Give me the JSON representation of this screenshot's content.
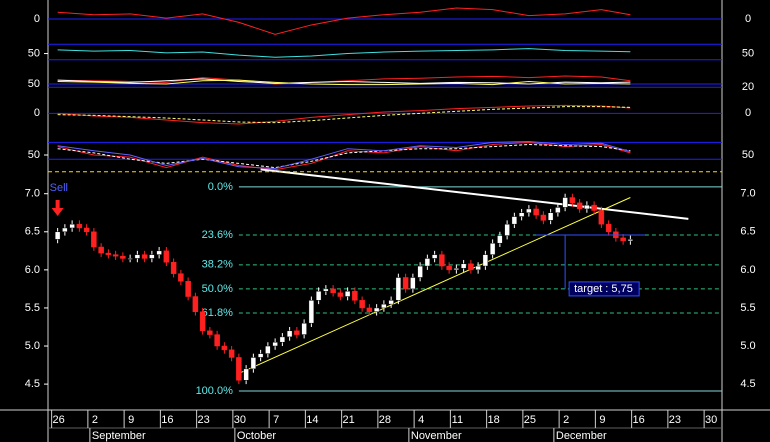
{
  "chart_data": [
    {
      "type": "candlestick",
      "categories": [
        "26",
        null,
        null,
        null,
        null,
        "2",
        null,
        null,
        null,
        null,
        "9",
        null,
        null,
        null,
        null,
        "16",
        null,
        null,
        null,
        null,
        "23",
        null,
        null,
        null,
        null,
        "30",
        null,
        null,
        null,
        null,
        "7",
        null,
        null,
        null,
        null,
        "14",
        null,
        null,
        null,
        null,
        "21",
        null,
        null,
        null,
        null,
        "28",
        null,
        null,
        null,
        null,
        "4",
        null,
        null,
        null,
        null,
        "11",
        null,
        null,
        null,
        null,
        "18",
        null,
        null,
        null,
        null,
        "25",
        null,
        null,
        null,
        null,
        "2",
        null,
        null,
        null,
        null,
        "9",
        null,
        null,
        null,
        null,
        "16",
        null,
        null,
        null,
        null,
        "23",
        null,
        null,
        null,
        null,
        "30"
      ],
      "x_groups": [
        {
          "label": "September",
          "from": 5
        },
        {
          "label": "October",
          "from": 25
        },
        {
          "label": "November",
          "from": 49
        },
        {
          "label": "December",
          "from": 69
        }
      ],
      "open": [
        6.4,
        6.5,
        6.55,
        6.6,
        6.55,
        6.5,
        6.3,
        6.22,
        6.2,
        6.18,
        6.15,
        6.15,
        6.2,
        6.15,
        6.2,
        6.25,
        6.1,
        5.95,
        5.85,
        5.65,
        5.45,
        5.2,
        5.15,
        5.0,
        4.95,
        4.85,
        4.55,
        4.7,
        4.85,
        4.9,
        5.0,
        5.05,
        5.12,
        5.2,
        5.15,
        5.3,
        5.6,
        5.72,
        5.75,
        5.7,
        5.65,
        5.72,
        5.6,
        5.5,
        5.45,
        5.5,
        5.55,
        5.6,
        5.9,
        5.75,
        5.9,
        6.05,
        6.15,
        6.2,
        6.05,
        6.0,
        6.02,
        6.08,
        6.0,
        6.05,
        6.2,
        6.35,
        6.45,
        6.6,
        6.7,
        6.75,
        6.8,
        6.72,
        6.65,
        6.75,
        6.82,
        6.95,
        6.88,
        6.8,
        6.85,
        6.78,
        6.6,
        6.5,
        6.42,
        6.38,
        null,
        null,
        null,
        null,
        null,
        null,
        null,
        null,
        null,
        null,
        null
      ],
      "high": [
        6.55,
        6.6,
        6.65,
        6.65,
        6.6,
        6.55,
        6.35,
        6.27,
        6.25,
        6.23,
        6.2,
        6.25,
        6.25,
        6.25,
        6.3,
        6.3,
        6.15,
        6.0,
        5.9,
        5.7,
        5.5,
        5.25,
        5.2,
        5.05,
        5.0,
        4.9,
        4.75,
        4.9,
        4.95,
        5.05,
        5.1,
        5.17,
        5.25,
        5.25,
        5.35,
        5.65,
        5.77,
        5.8,
        5.8,
        5.75,
        5.77,
        5.77,
        5.65,
        5.55,
        5.55,
        5.6,
        5.65,
        5.95,
        5.95,
        5.95,
        6.1,
        6.2,
        6.25,
        6.25,
        6.1,
        6.07,
        6.13,
        6.13,
        6.1,
        6.25,
        6.4,
        6.5,
        6.65,
        6.75,
        6.8,
        6.85,
        6.85,
        6.77,
        6.8,
        6.87,
        7.0,
        7.0,
        6.93,
        6.9,
        6.9,
        6.83,
        6.65,
        6.55,
        6.47,
        6.45,
        null,
        null,
        null,
        null,
        null,
        null,
        null,
        null,
        null,
        null,
        null
      ],
      "low": [
        6.35,
        6.45,
        6.5,
        6.5,
        6.45,
        6.25,
        6.17,
        6.15,
        6.13,
        6.1,
        6.1,
        6.1,
        6.1,
        6.1,
        6.15,
        6.05,
        5.9,
        5.8,
        5.6,
        5.4,
        5.15,
        5.1,
        4.95,
        4.9,
        4.8,
        4.5,
        4.5,
        4.65,
        4.8,
        4.85,
        4.95,
        5.0,
        5.07,
        5.1,
        5.1,
        5.25,
        5.55,
        5.67,
        5.65,
        5.6,
        5.6,
        5.55,
        5.45,
        5.4,
        5.4,
        5.45,
        5.5,
        5.55,
        5.7,
        5.7,
        5.85,
        6.0,
        6.1,
        6.0,
        5.95,
        5.95,
        5.97,
        5.95,
        5.95,
        6.0,
        6.15,
        6.3,
        6.4,
        6.55,
        6.65,
        6.7,
        6.67,
        6.6,
        6.6,
        6.7,
        6.77,
        6.83,
        6.75,
        6.75,
        6.73,
        6.55,
        6.45,
        6.37,
        6.33,
        6.33,
        null,
        null,
        null,
        null,
        null,
        null,
        null,
        null,
        null,
        null,
        null
      ],
      "close": [
        6.5,
        6.55,
        6.6,
        6.55,
        6.5,
        6.3,
        6.22,
        6.2,
        6.18,
        6.15,
        6.15,
        6.2,
        6.15,
        6.2,
        6.25,
        6.1,
        5.95,
        5.85,
        5.65,
        5.45,
        5.2,
        5.15,
        5.0,
        4.95,
        4.85,
        4.55,
        4.7,
        4.85,
        4.9,
        5.0,
        5.05,
        5.12,
        5.2,
        5.15,
        5.3,
        5.6,
        5.72,
        5.75,
        5.7,
        5.65,
        5.72,
        5.6,
        5.5,
        5.45,
        5.5,
        5.55,
        5.6,
        5.9,
        5.75,
        5.9,
        6.05,
        6.15,
        6.2,
        6.05,
        6.0,
        6.02,
        6.08,
        6.0,
        6.05,
        6.2,
        6.35,
        6.45,
        6.6,
        6.7,
        6.75,
        6.8,
        6.72,
        6.65,
        6.75,
        6.82,
        6.95,
        6.88,
        6.8,
        6.85,
        6.78,
        6.6,
        6.5,
        6.42,
        6.38,
        6.4,
        null,
        null,
        null,
        null,
        null,
        null,
        null,
        null,
        null,
        null,
        null
      ],
      "up_color": "#ffffff",
      "down_color": "#ff2020",
      "ylim": [
        4.16,
        7.18
      ],
      "yticks": [
        {
          "value": 4.5,
          "label": "4.5"
        },
        {
          "value": 5,
          "label": "5.0"
        },
        {
          "value": 5.5,
          "label": "5.5"
        },
        {
          "value": 6,
          "label": "6.0"
        },
        {
          "value": 6.5,
          "label": "6.5"
        },
        {
          "value": 7,
          "label": "7.0"
        }
      ],
      "fib": {
        "high": 7.09,
        "low": 4.41,
        "from": 25,
        "edge_color": "#80d8d8",
        "level_color": "#30c080",
        "label_color": "#60e8e8",
        "levels": [
          {
            "value": 0,
            "label": "0.0%"
          },
          {
            "value": 23.6,
            "label": "23.6%"
          },
          {
            "value": 38.2,
            "label": "38.2%"
          },
          {
            "value": 50,
            "label": "50.0%"
          },
          {
            "value": 61.8,
            "label": "61.8%"
          },
          {
            "value": 100,
            "label": "100.0%"
          }
        ]
      },
      "trendlines": [
        {
          "color": "#ffffff",
          "x": [
            28,
            87
          ],
          "y": [
            7.32,
            6.67
          ]
        },
        {
          "color": "#ffff40",
          "x": [
            25,
            79
          ],
          "y": [
            4.64,
            6.95
          ]
        }
      ],
      "target": {
        "label": "target : 5,75",
        "value": 5.75,
        "x": 70,
        "color": "#3050ff"
      },
      "signal": {
        "label": "Sell",
        "x": 0,
        "color": "#5060ff",
        "arrow_color": "#ff2020"
      }
    },
    {
      "type": "line",
      "x": [
        0,
        5,
        10,
        15,
        20,
        25,
        30,
        35,
        40,
        45,
        50,
        55,
        60,
        65,
        70,
        75,
        79
      ],
      "ylim": [
        -1,
        1
      ],
      "yticks": [
        0
      ],
      "grid": true,
      "grid_color": "#2020ff",
      "series": [
        {
          "color": "#ff2020",
          "values": [
            0.4,
            0.25,
            0.3,
            0.05,
            0.3,
            -0.2,
            -0.9,
            -0.35,
            0.05,
            0.25,
            0.4,
            0.65,
            0.55,
            0.2,
            0.3,
            0.55,
            0.25
          ]
        }
      ]
    },
    {
      "type": "line",
      "x": [
        0,
        5,
        10,
        15,
        20,
        25,
        30,
        35,
        40,
        45,
        50,
        55,
        60,
        65,
        70,
        75,
        79
      ],
      "ylim": [
        10,
        100
      ],
      "yticks": [
        50
      ],
      "grid": false,
      "hlines": [
        {
          "value": 80,
          "color": "#2020ff"
        },
        {
          "value": 30,
          "color": "#2020ff"
        }
      ],
      "series": [
        {
          "color": "#40e0e0",
          "values": [
            62,
            58,
            60,
            52,
            55,
            45,
            38,
            42,
            50,
            55,
            58,
            60,
            62,
            66,
            60,
            58,
            56
          ]
        }
      ]
    },
    {
      "type": "line",
      "x": [
        0,
        5,
        10,
        15,
        20,
        25,
        30,
        35,
        40,
        45,
        50,
        55,
        60,
        65,
        70,
        75,
        79
      ],
      "ylim": [
        0,
        100
      ],
      "yticks": [
        50
      ],
      "y2lim": [
        0,
        50
      ],
      "y2ticks": [
        20
      ],
      "grid": true,
      "grid_color": "#2020ff",
      "series": [
        {
          "color": "#ff2020",
          "values": [
            62,
            60,
            58,
            55,
            70,
            62,
            50,
            55,
            60,
            66,
            68,
            72,
            74,
            70,
            75,
            72,
            60
          ]
        },
        {
          "color": "#ffffff",
          "values": [
            62,
            58,
            55,
            60,
            66,
            58,
            52,
            55,
            58,
            55,
            52,
            55,
            54,
            50,
            56,
            54,
            56
          ]
        },
        {
          "color": "#ffff60",
          "values": [
            58,
            56,
            52,
            50,
            60,
            62,
            55,
            50,
            48,
            48,
            50,
            52,
            48,
            58,
            50,
            52,
            50
          ]
        }
      ]
    },
    {
      "type": "line",
      "x": [
        0,
        5,
        10,
        15,
        20,
        25,
        30,
        35,
        40,
        45,
        50,
        55,
        60,
        65,
        70,
        75,
        79
      ],
      "ylim": [
        -1.4,
        1
      ],
      "yticks": [
        0
      ],
      "grid": true,
      "grid_color": "#2020ff",
      "series": [
        {
          "color": "#ff2020",
          "values": [
            0,
            -0.2,
            -0.3,
            -0.5,
            -0.7,
            -0.8,
            -0.6,
            -0.3,
            -0.1,
            0.1,
            0.2,
            0.35,
            0.45,
            0.55,
            0.6,
            0.55,
            0.4
          ]
        },
        {
          "color": "#ffff80",
          "style": "dashed",
          "values": [
            -0.1,
            -0.15,
            -0.25,
            -0.35,
            -0.5,
            -0.65,
            -0.7,
            -0.55,
            -0.35,
            -0.15,
            0,
            0.15,
            0.3,
            0.4,
            0.5,
            0.5,
            0.45
          ]
        }
      ]
    },
    {
      "type": "line",
      "x": [
        0,
        5,
        10,
        15,
        20,
        25,
        30,
        35,
        40,
        45,
        50,
        55,
        60,
        65,
        70,
        75,
        79
      ],
      "ylim": [
        0,
        100
      ],
      "yticks": [
        50
      ],
      "grid": false,
      "hlines": [
        {
          "value": 80,
          "color": "#2020ff"
        },
        {
          "value": 40,
          "color": "#2020ff"
        },
        {
          "value": 10,
          "color": "#ffd700",
          "style": "dashed"
        }
      ],
      "series": [
        {
          "color": "#ff2020",
          "values": [
            70,
            50,
            45,
            20,
            45,
            25,
            15,
            30,
            60,
            55,
            70,
            60,
            75,
            80,
            70,
            75,
            55
          ]
        },
        {
          "color": "#ffffff",
          "style": "dashed",
          "values": [
            65,
            55,
            40,
            30,
            40,
            30,
            20,
            35,
            55,
            60,
            65,
            65,
            70,
            75,
            72,
            70,
            60
          ]
        },
        {
          "color": "#6060ff",
          "values": [
            72,
            60,
            50,
            25,
            42,
            22,
            18,
            40,
            65,
            60,
            72,
            68,
            80,
            82,
            75,
            78,
            58
          ]
        }
      ]
    }
  ]
}
